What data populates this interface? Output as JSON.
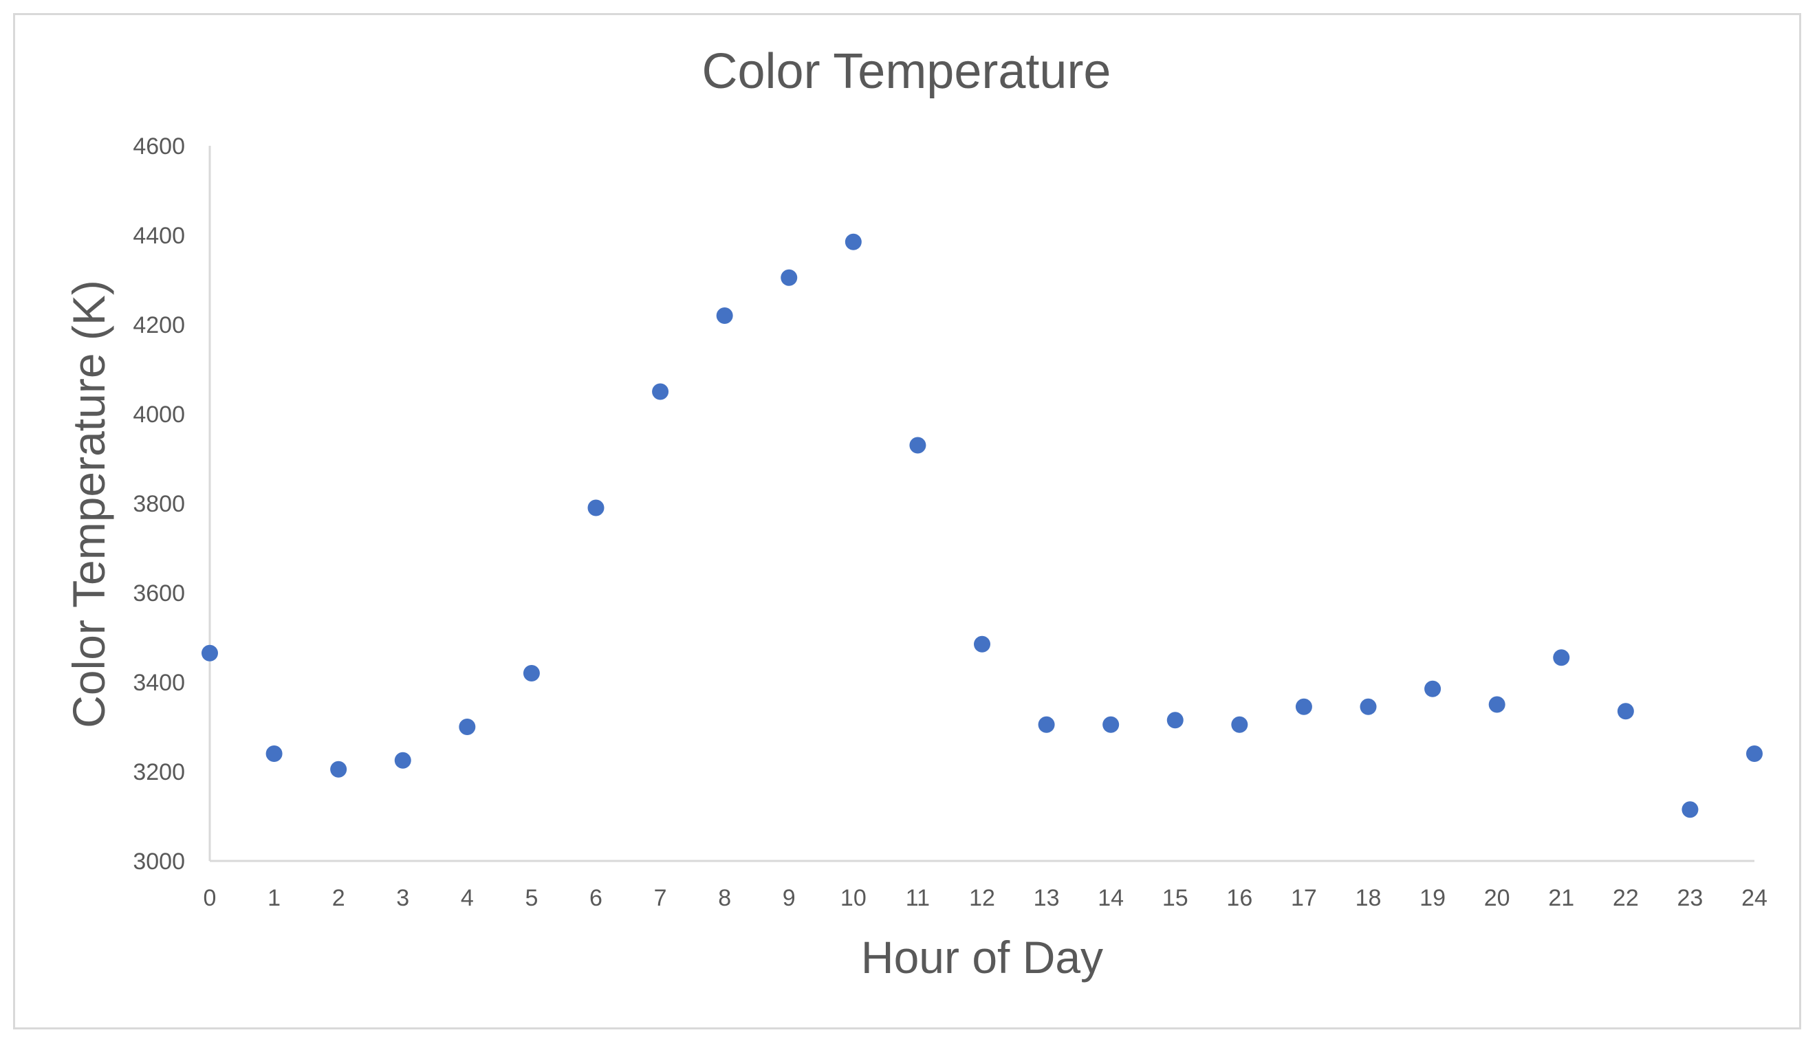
{
  "chart_data": {
    "type": "scatter",
    "title": "Color Temperature",
    "xlabel": "Hour of Day",
    "ylabel": "Color Temperature (K)",
    "xlim": [
      0,
      24
    ],
    "ylim": [
      3000,
      4600
    ],
    "x_ticks": [
      0,
      1,
      2,
      3,
      4,
      5,
      6,
      7,
      8,
      9,
      10,
      11,
      12,
      13,
      14,
      15,
      16,
      17,
      18,
      19,
      20,
      21,
      22,
      23,
      24
    ],
    "y_ticks": [
      3000,
      3200,
      3400,
      3600,
      3800,
      4000,
      4200,
      4400,
      4600
    ],
    "grid": false,
    "legend": "none",
    "color": "#4472c4",
    "series": [
      {
        "x": [
          0,
          1,
          2,
          3,
          4,
          5,
          6,
          7,
          8,
          9,
          10,
          11,
          12,
          13,
          14,
          15,
          16,
          17,
          18,
          19,
          20,
          21,
          22,
          23,
          24
        ],
        "y": [
          3465,
          3240,
          3205,
          3225,
          3300,
          3420,
          3790,
          4050,
          4220,
          4305,
          4385,
          3930,
          3485,
          3305,
          3305,
          3315,
          3305,
          3345,
          3345,
          3385,
          3350,
          3455,
          3335,
          3115,
          3240
        ]
      }
    ]
  }
}
